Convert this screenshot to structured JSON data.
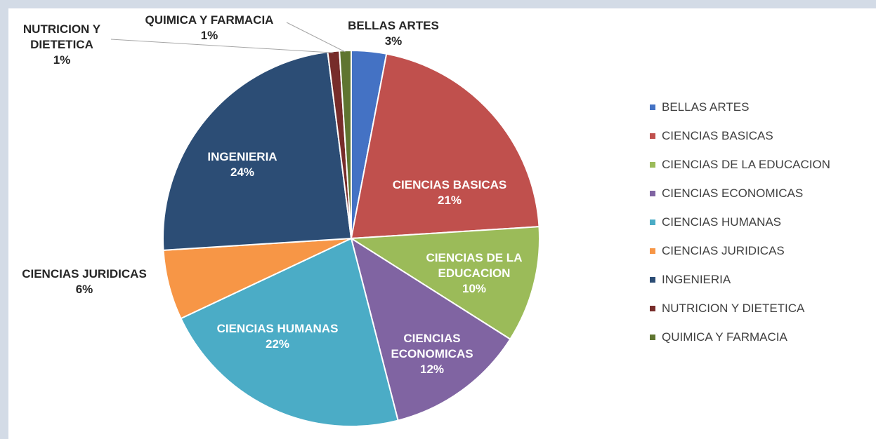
{
  "chart_data": {
    "type": "pie",
    "categories": [
      "BELLAS ARTES",
      "CIENCIAS BASICAS",
      "CIENCIAS DE LA EDUCACION",
      "CIENCIAS ECONOMICAS",
      "CIENCIAS HUMANAS",
      "CIENCIAS JURIDICAS",
      "INGENIERIA",
      "NUTRICION Y DIETETICA",
      "QUIMICA Y FARMACIA"
    ],
    "values": [
      3,
      21,
      10,
      12,
      22,
      6,
      24,
      1,
      1
    ],
    "value_labels": [
      "3%",
      "21%",
      "10%",
      "12%",
      "22%",
      "6%",
      "24%",
      "1%",
      "1%"
    ],
    "colors": [
      "#4472c4",
      "#c0504d",
      "#9bbb59",
      "#8064a2",
      "#4bacc6",
      "#f79646",
      "#2c4d75",
      "#772c2a",
      "#5f7530"
    ],
    "legend": "right"
  }
}
